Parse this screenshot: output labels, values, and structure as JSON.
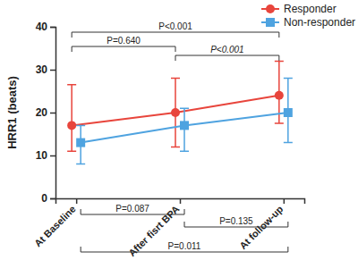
{
  "chart_data": {
    "type": "line",
    "y_label": "HRR1 (beats)",
    "categories": [
      "At Baseline",
      "After fisrt BPA",
      "At follow-up"
    ],
    "series": [
      {
        "name": "Responder",
        "color": "#e8453c",
        "marker": "circle",
        "values": [
          17,
          20,
          24
        ],
        "error_low": [
          11,
          12,
          17.5
        ],
        "error_high": [
          26.5,
          28,
          32
        ]
      },
      {
        "name": "Non-responder",
        "color": "#4fa3e0",
        "marker": "square",
        "values": [
          13,
          17,
          20
        ],
        "error_low": [
          8,
          11,
          13
        ],
        "error_high": [
          17,
          21,
          28
        ]
      }
    ],
    "ylim": [
      0,
      40
    ],
    "yticks": [
      0,
      10,
      20,
      30,
      40
    ],
    "legend": "top-right",
    "annotations": [
      {
        "text": "P=0.640",
        "series": "Responder",
        "between": [
          0,
          1
        ]
      },
      {
        "text": "P<0.001",
        "series": "Responder",
        "between": [
          1,
          2
        ]
      },
      {
        "text": "P<0.001",
        "series": "Responder",
        "between": [
          0,
          2
        ]
      },
      {
        "text": "P=0.087",
        "series": "Non-responder",
        "between": [
          0,
          1
        ]
      },
      {
        "text": "P=0.135",
        "series": "Non-responder",
        "between": [
          1,
          2
        ]
      },
      {
        "text": "P=0.011",
        "series": "Non-responder",
        "between": [
          0,
          2
        ]
      }
    ]
  }
}
